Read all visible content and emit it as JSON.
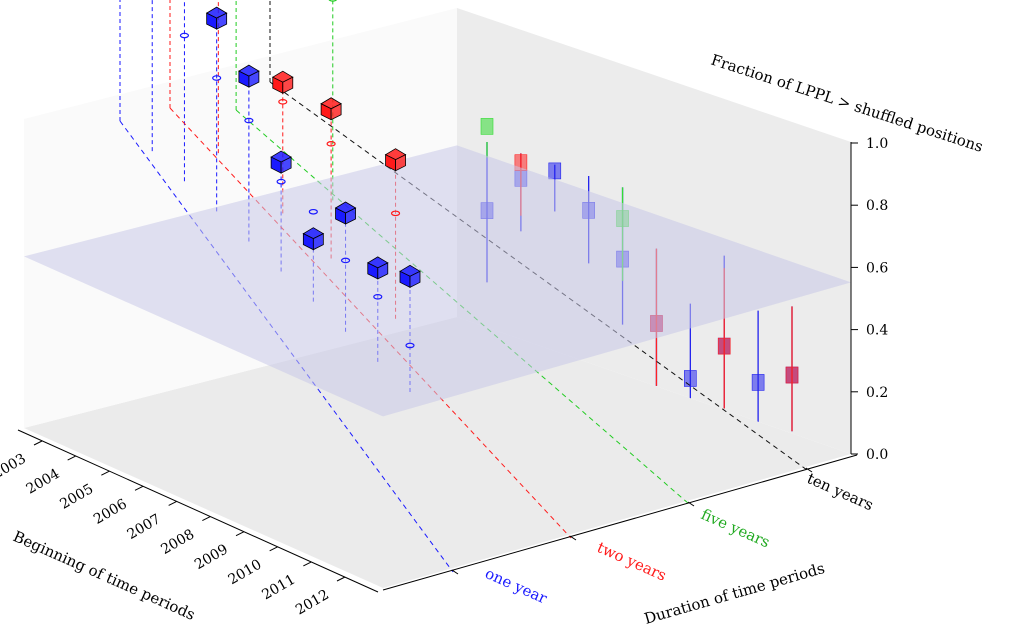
{
  "chart_data": {
    "type": "scatter",
    "title": "",
    "xlabel": "Beginning of time periods",
    "ylabel": "Duration of time periods",
    "zlabel": "Fraction of LPPL > shuffled positions",
    "x_ticks": [
      "2003",
      "2004",
      "2005",
      "2006",
      "2007",
      "2008",
      "2009",
      "2010",
      "2011",
      "2012"
    ],
    "z_ticks": [
      "0.0",
      "0.2",
      "0.4",
      "0.6",
      "0.8",
      "1.0"
    ],
    "zlim": [
      0,
      1
    ],
    "threshold_plane": 0.55,
    "grid": false,
    "colors": {
      "pass": "red",
      "fail": "blue",
      "black": "black",
      "green": "green"
    },
    "series": [
      {
        "name": "one year",
        "color": "#1a1aff",
        "points": [
          {
            "x": 2003.0,
            "z": 0.6,
            "marker": 0.56
          },
          {
            "x": 2004.0,
            "z": 0.67,
            "marker": 0.51
          },
          {
            "x": 2005.0,
            "z": 0.7,
            "marker": 0.47
          },
          {
            "x": 2006.0,
            "z": 0.62,
            "marker": 0.43
          },
          {
            "x": 2007.0,
            "z": 0.53,
            "marker": 0.39
          },
          {
            "x": 2008.0,
            "z": 0.35,
            "marker": 0.29
          },
          {
            "x": 2009.0,
            "z": 0.2,
            "marker": 0.29
          },
          {
            "x": 2010.0,
            "z": 0.38,
            "marker": 0.23
          },
          {
            "x": 2011.0,
            "z": 0.3,
            "marker": 0.21
          },
          {
            "x": 2012.0,
            "z": 0.37,
            "marker": 0.15
          }
        ]
      },
      {
        "name": "two years",
        "color": "#ff1a1a",
        "points": [
          {
            "x": 2003.0,
            "z": 0.94,
            "marker": 0.58
          },
          {
            "x": 2004.5,
            "z": 0.88,
            "marker": 0.55
          },
          {
            "x": 2006.5,
            "z": 0.42,
            "marker": 0.36
          },
          {
            "x": 2008.0,
            "z": 0.48,
            "marker": 0.37
          },
          {
            "x": 2010.0,
            "z": 0.51,
            "marker": 0.34
          }
        ]
      },
      {
        "name": "five years",
        "color": "#22cc22",
        "points": [
          {
            "x": 2003.5,
            "z": 1.12,
            "marker": 0.79
          },
          {
            "x": 2006.5,
            "z": 0.97,
            "marker": 0.65
          }
        ]
      },
      {
        "name": "ten years",
        "color": "#111111",
        "points": [
          {
            "x": 2003.0,
            "z": 1.14,
            "marker": 0.94
          }
        ]
      }
    ],
    "wall_errorbars": [
      {
        "color": "#2222ee",
        "x": 2003.0,
        "z": 0.78,
        "low": 0.55,
        "high": 1.0
      },
      {
        "color": "#2222ee",
        "x": 2004.0,
        "z": 0.92,
        "low": 0.75,
        "high": 1.0
      },
      {
        "color": "#2222ee",
        "x": 2005.0,
        "z": 0.98,
        "low": 0.85,
        "high": 1.0
      },
      {
        "color": "#2222ee",
        "x": 2006.0,
        "z": 0.89,
        "low": 0.72,
        "high": 1.0
      },
      {
        "color": "#2222ee",
        "x": 2007.0,
        "z": 0.77,
        "low": 0.56,
        "high": 1.0
      },
      {
        "color": "#2222ee",
        "x": 2008.0,
        "z": 0.6,
        "low": 0.4,
        "high": 0.84
      },
      {
        "color": "#2222ee",
        "x": 2009.0,
        "z": 0.46,
        "low": 0.3,
        "high": 0.7
      },
      {
        "color": "#2222ee",
        "x": 2010.0,
        "z": 0.6,
        "low": 0.4,
        "high": 0.89
      },
      {
        "color": "#2222ee",
        "x": 2011.0,
        "z": 0.52,
        "low": 0.37,
        "high": 0.75
      },
      {
        "color": "#2222ee",
        "x": 2012.0,
        "z": 0.58,
        "low": 0.4,
        "high": 0.8
      },
      {
        "color": "#ff2222",
        "x": 2004.0,
        "z": 0.97,
        "low": 0.8,
        "high": 1.0
      },
      {
        "color": "#ff2222",
        "x": 2008.0,
        "z": 0.6,
        "low": 0.4,
        "high": 0.84
      },
      {
        "color": "#ff2222",
        "x": 2010.0,
        "z": 0.6,
        "low": 0.4,
        "high": 0.85
      },
      {
        "color": "#ff2222",
        "x": 2012.0,
        "z": 0.58,
        "low": 0.4,
        "high": 0.8
      },
      {
        "color": "#33dd33",
        "x": 2003.0,
        "z": 1.05,
        "low": 0.95,
        "high": 1.0
      },
      {
        "color": "#33dd33",
        "x": 2007.0,
        "z": 0.9,
        "low": 0.7,
        "high": 1.0
      }
    ]
  }
}
